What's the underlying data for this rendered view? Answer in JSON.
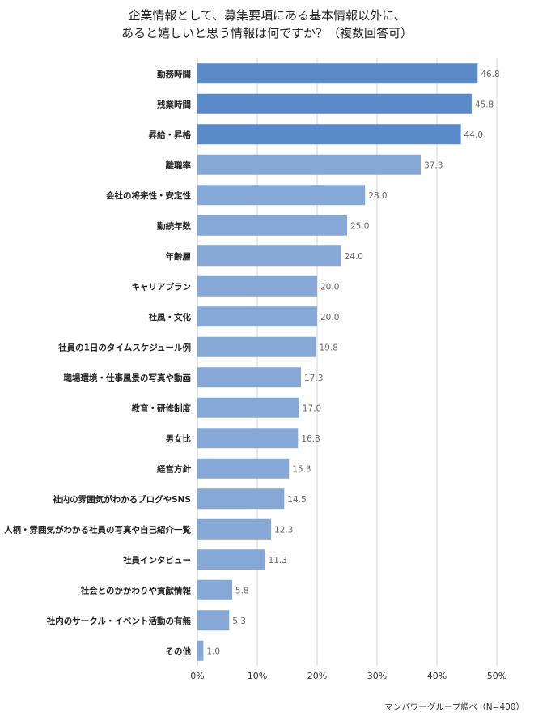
{
  "title_lines": [
    "企業情報として、募集要項にある基本情報以外に、",
    "あると嬉しいと思う情報は何ですか？（複数回答可）"
  ],
  "source": "マンパワーグループ調べ（N=400）",
  "colors": {
    "top_bar": "#5b8ac9",
    "bar": "#86a8d6",
    "grid": "#d6d6d6",
    "value_text": "#666666"
  },
  "chart_data": {
    "type": "bar",
    "orientation": "horizontal",
    "categories": [
      "勤務時間",
      "残業時間",
      "昇給・昇格",
      "離職率",
      "会社の将来性・安定性",
      "勤続年数",
      "年齢層",
      "キャリアプラン",
      "社風・文化",
      "社員の1日のタイムスケジュール例",
      "職場環境・仕事風景の写真や動画",
      "教育・研修制度",
      "男女比",
      "経営方針",
      "社内の雰囲気がわかるブログやSNS",
      "人柄・雰囲気がわかる社員の写真や自己紹介一覧",
      "社員インタビュー",
      "社会とのかかわりや貢献情報",
      "社内のサークル・イベント活動の有無",
      "その他"
    ],
    "values": [
      46.8,
      45.8,
      44.0,
      37.3,
      28.0,
      25.0,
      24.0,
      20.0,
      20.0,
      19.8,
      17.3,
      17.0,
      16.8,
      15.3,
      14.5,
      12.3,
      11.3,
      5.8,
      5.3,
      1.0
    ],
    "value_labels": [
      "46.8",
      "45.8",
      "44.0",
      "37.3",
      "28.0",
      "25.0",
      "24.0",
      "20.0",
      "20.0",
      "19.8",
      "17.3",
      "17.0",
      "16.8",
      "15.3",
      "14.5",
      "12.3",
      "11.3",
      "5.8",
      "5.3",
      "1.0"
    ],
    "highlighted_count": 3,
    "x_ticks": [
      "0%",
      "10%",
      "20%",
      "30%",
      "40%",
      "50%"
    ],
    "xlim": [
      0,
      50
    ],
    "grid": true
  }
}
